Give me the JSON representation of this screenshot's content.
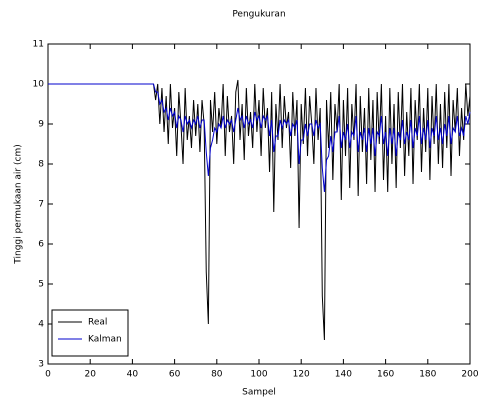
{
  "chart_data": {
    "type": "line",
    "title": "Pengukuran",
    "xlabel": "Sampel",
    "ylabel": "Tinggi permukaan air (cm)",
    "x": [
      0,
      1,
      2,
      3,
      4,
      5,
      6,
      7,
      8,
      9,
      10,
      11,
      12,
      13,
      14,
      15,
      16,
      17,
      18,
      19,
      20,
      21,
      22,
      23,
      24,
      25,
      26,
      27,
      28,
      29,
      30,
      31,
      32,
      33,
      34,
      35,
      36,
      37,
      38,
      39,
      40,
      41,
      42,
      43,
      44,
      45,
      46,
      47,
      48,
      49,
      50,
      51,
      52,
      53,
      54,
      55,
      56,
      57,
      58,
      59,
      60,
      61,
      62,
      63,
      64,
      65,
      66,
      67,
      68,
      69,
      70,
      71,
      72,
      73,
      74,
      75,
      76,
      77,
      78,
      79,
      80,
      81,
      82,
      83,
      84,
      85,
      86,
      87,
      88,
      89,
      90,
      91,
      92,
      93,
      94,
      95,
      96,
      97,
      98,
      99,
      100,
      101,
      102,
      103,
      104,
      105,
      106,
      107,
      108,
      109,
      110,
      111,
      112,
      113,
      114,
      115,
      116,
      117,
      118,
      119,
      120,
      121,
      122,
      123,
      124,
      125,
      126,
      127,
      128,
      129,
      130,
      131,
      132,
      133,
      134,
      135,
      136,
      137,
      138,
      139,
      140,
      141,
      142,
      143,
      144,
      145,
      146,
      147,
      148,
      149,
      150,
      151,
      152,
      153,
      154,
      155,
      156,
      157,
      158,
      159,
      160,
      161,
      162,
      163,
      164,
      165,
      166,
      167,
      168,
      169,
      170,
      171,
      172,
      173,
      174,
      175,
      176,
      177,
      178,
      179,
      180,
      181,
      182,
      183,
      184,
      185,
      186,
      187,
      188,
      189,
      190,
      191,
      192,
      193,
      194,
      195,
      196,
      197,
      198,
      199,
      200
    ],
    "series": [
      {
        "name": "Real",
        "color": "#000000",
        "values": [
          10,
          10,
          10,
          10,
          10,
          10,
          10,
          10,
          10,
          10,
          10,
          10,
          10,
          10,
          10,
          10,
          10,
          10,
          10,
          10,
          10,
          10,
          10,
          10,
          10,
          10,
          10,
          10,
          10,
          10,
          10,
          10,
          10,
          10,
          10,
          10,
          10,
          10,
          10,
          10,
          10,
          10,
          10,
          10,
          10,
          10,
          10,
          10,
          10,
          10,
          10,
          9.6,
          10,
          9,
          9.9,
          8.8,
          9.7,
          8.5,
          10,
          8.9,
          9.4,
          8.2,
          9.8,
          9,
          8,
          9.9,
          8.6,
          9.2,
          8.4,
          9.6,
          8.7,
          9.5,
          8.3,
          9.6,
          9,
          5.3,
          4,
          9.6,
          8.8,
          9.8,
          8.5,
          9.4,
          8.9,
          10,
          8.2,
          9.7,
          8.8,
          9.2,
          8,
          9.8,
          10.1,
          8.6,
          9.5,
          8.1,
          9.9,
          8.7,
          9.3,
          8.4,
          10,
          8.8,
          9.6,
          8.2,
          9.9,
          8.9,
          9.4,
          7.8,
          9.8,
          6.8,
          9.5,
          8.6,
          10,
          8.4,
          9.7,
          8.9,
          9.3,
          7.9,
          9.8,
          8.7,
          9.6,
          6.4,
          9.5,
          8.5,
          9.9,
          8.2,
          9.7,
          9,
          8,
          9.9,
          8.6,
          9.4,
          4.7,
          3.6,
          9.6,
          8.4,
          9.8,
          7.6,
          9.5,
          8.8,
          10,
          7.1,
          9.6,
          8.2,
          9.9,
          7.4,
          9.5,
          8.6,
          10,
          7.2,
          9.7,
          8.3,
          9.4,
          7.5,
          9.9,
          8.1,
          9.6,
          7.3,
          9.8,
          8.5,
          10,
          7.6,
          9.2,
          7.3,
          9.9,
          8,
          9.5,
          7.4,
          9.8,
          8.4,
          10,
          7.7,
          9.3,
          8.2,
          9.9,
          7.5,
          9.6,
          8.6,
          10,
          7.8,
          9.4,
          8.3,
          9.9,
          7.6,
          9.7,
          8.5,
          10,
          8,
          9.5,
          7.9,
          9.8,
          8.4,
          10,
          7.7,
          9.6,
          8.8,
          9.9,
          8.2,
          9.4,
          8.6,
          10,
          9.2,
          9.7
        ]
      },
      {
        "name": "Kalman",
        "color": "#0000cc",
        "values": [
          10,
          10,
          10,
          10,
          10,
          10,
          10,
          10,
          10,
          10,
          10,
          10,
          10,
          10,
          10,
          10,
          10,
          10,
          10,
          10,
          10,
          10,
          10,
          10,
          10,
          10,
          10,
          10,
          10,
          10,
          10,
          10,
          10,
          10,
          10,
          10,
          10,
          10,
          10,
          10,
          10,
          10,
          10,
          10,
          10,
          10,
          10,
          10,
          10,
          10,
          10,
          9.8,
          9.8,
          9.5,
          9.6,
          9.3,
          9.4,
          9.1,
          9.4,
          9.2,
          9.3,
          8.9,
          9.2,
          9.1,
          8.8,
          9.2,
          9,
          9.1,
          8.9,
          9.1,
          9,
          9.2,
          8.9,
          9.1,
          9.1,
          8.3,
          7.7,
          8.4,
          8.6,
          8.9,
          8.8,
          9,
          8.9,
          9.2,
          8.9,
          9.1,
          9,
          9.1,
          8.8,
          9.1,
          9.4,
          9.1,
          9.2,
          8.9,
          9.2,
          9,
          9.1,
          8.9,
          9.3,
          9.1,
          9.2,
          8.9,
          9.2,
          9.1,
          9.2,
          8.7,
          9.1,
          8.3,
          8.7,
          8.7,
          9.1,
          8.9,
          9.1,
          9,
          9.1,
          8.7,
          9,
          8.9,
          9.1,
          8,
          8.6,
          8.6,
          9,
          8.7,
          9,
          9,
          8.7,
          9.1,
          8.9,
          9,
          7.9,
          7.3,
          8.1,
          8.2,
          8.7,
          8.3,
          8.8,
          8.8,
          9.2,
          8.4,
          8.8,
          8.6,
          9,
          8.4,
          8.8,
          8.7,
          9.2,
          8.3,
          8.8,
          8.6,
          8.9,
          8.3,
          8.9,
          8.5,
          8.9,
          8.2,
          8.8,
          8.7,
          9.2,
          8.5,
          8.8,
          8.2,
          8.9,
          8.5,
          8.9,
          8.2,
          8.8,
          8.6,
          9.1,
          8.5,
          8.8,
          8.6,
          9.1,
          8.4,
          8.9,
          8.7,
          9.2,
          8.5,
          8.9,
          8.6,
          9.1,
          8.4,
          8.9,
          8.7,
          9.2,
          8.6,
          8.9,
          8.5,
          9,
          8.7,
          9.2,
          8.5,
          8.9,
          8.8,
          9.2,
          8.7,
          8.9,
          8.7,
          9.2,
          9,
          9.3
        ]
      }
    ],
    "xlim": [
      0,
      200
    ],
    "xticks": [
      0,
      20,
      40,
      60,
      80,
      100,
      120,
      140,
      160,
      180,
      200
    ],
    "ylim": [
      3,
      11
    ],
    "yticks": [
      3,
      4,
      5,
      6,
      7,
      8,
      9,
      10,
      11
    ],
    "legend": "lower left"
  }
}
